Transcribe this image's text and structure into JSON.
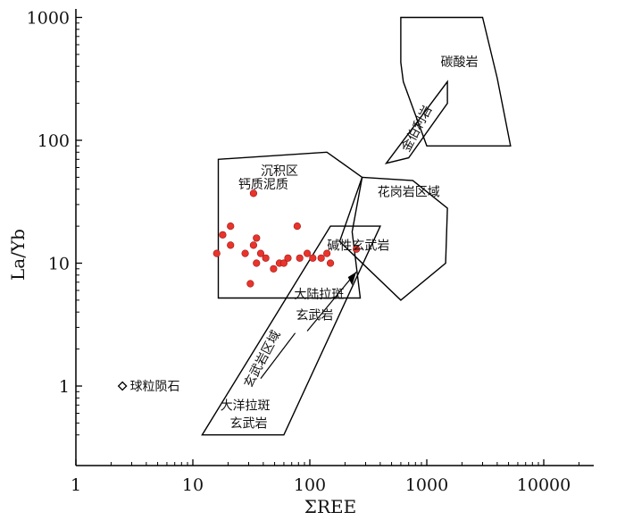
{
  "chart_data": {
    "type": "scatter",
    "title": "",
    "xlabel": "ΣREE",
    "ylabel": "La/Yb",
    "x_scale": "log",
    "y_scale": "log",
    "xlim": [
      1,
      25000
    ],
    "ylim": [
      0.33,
      1700
    ],
    "x_ticks": [
      {
        "value": 1,
        "label": "1"
      },
      {
        "value": 10,
        "label": "10"
      },
      {
        "value": 100,
        "label": "100"
      },
      {
        "value": 1000,
        "label": "1000"
      },
      {
        "value": 10000,
        "label": "10000"
      }
    ],
    "y_ticks": [
      {
        "value": 1,
        "label": "1"
      },
      {
        "value": 10,
        "label": "10"
      },
      {
        "value": 100,
        "label": "100"
      },
      {
        "value": 1000,
        "label": "1000"
      }
    ],
    "grid": false,
    "regions": [
      {
        "id": "carbonatite",
        "label": "碳酸岩",
        "polygon": [
          [
            600,
            1000
          ],
          [
            3000,
            1000
          ],
          [
            4000,
            320
          ],
          [
            5200,
            90
          ],
          [
            1000,
            90
          ],
          [
            630,
            300
          ],
          [
            600,
            430
          ]
        ]
      },
      {
        "id": "kimberlite",
        "label": "金伯利岩",
        "polygon": [
          [
            450,
            65
          ],
          [
            1500,
            300
          ],
          [
            1500,
            200
          ],
          [
            700,
            72
          ]
        ]
      },
      {
        "id": "sedimentary",
        "label": "沉积区",
        "polygon": [
          [
            16.5,
            70
          ],
          [
            140,
            80
          ],
          [
            280,
            50
          ],
          [
            230,
            18
          ],
          [
            270,
            5.2
          ],
          [
            16.5,
            5.2
          ]
        ]
      },
      {
        "id": "granite",
        "label": "花岗岩区域",
        "polygon": [
          [
            280,
            50
          ],
          [
            760,
            47
          ],
          [
            1500,
            28
          ],
          [
            1450,
            10
          ],
          [
            600,
            5
          ],
          [
            180,
            15
          ]
        ]
      },
      {
        "id": "basalt",
        "label": "玄武岩区域",
        "polygon": [
          [
            12,
            0.4
          ],
          [
            60,
            0.4
          ],
          [
            400,
            20
          ],
          [
            150,
            20
          ]
        ]
      }
    ],
    "annotations": [
      {
        "text": "钙质泥质",
        "x": 40,
        "y": 44
      },
      {
        "text": "碱性玄武岩",
        "x": 260,
        "y": 14
      },
      {
        "text": "大陆拉斑",
        "x": 120,
        "y": 5.6
      },
      {
        "text": "玄武岩",
        "x": 110,
        "y": 3.8
      },
      {
        "text": "大洋拉斑",
        "x": 28,
        "y": 0.7
      },
      {
        "text": "玄武岩",
        "x": 30,
        "y": 0.5
      },
      {
        "text": "球粒陨石",
        "x": 2.9,
        "y": 1.0
      }
    ],
    "series": [
      {
        "marker": "circle",
        "color": "#e8342c",
        "points": [
          [
            16,
            12
          ],
          [
            18,
            17
          ],
          [
            21,
            20
          ],
          [
            21,
            14
          ],
          [
            33,
            37
          ],
          [
            35,
            16
          ],
          [
            28,
            12
          ],
          [
            33,
            14
          ],
          [
            38,
            12
          ],
          [
            42,
            11
          ],
          [
            35,
            10
          ],
          [
            49,
            9
          ],
          [
            55,
            10
          ],
          [
            60,
            10
          ],
          [
            65,
            11
          ],
          [
            78,
            20
          ],
          [
            82,
            11
          ],
          [
            95,
            12
          ],
          [
            106,
            11
          ],
          [
            125,
            11
          ],
          [
            140,
            12
          ],
          [
            150,
            10
          ],
          [
            250,
            13
          ],
          [
            31,
            6.8
          ]
        ]
      },
      {
        "name": "球粒陨石",
        "marker": "diamond",
        "color": "#000000",
        "points": [
          [
            2.5,
            1.0
          ]
        ]
      }
    ]
  }
}
